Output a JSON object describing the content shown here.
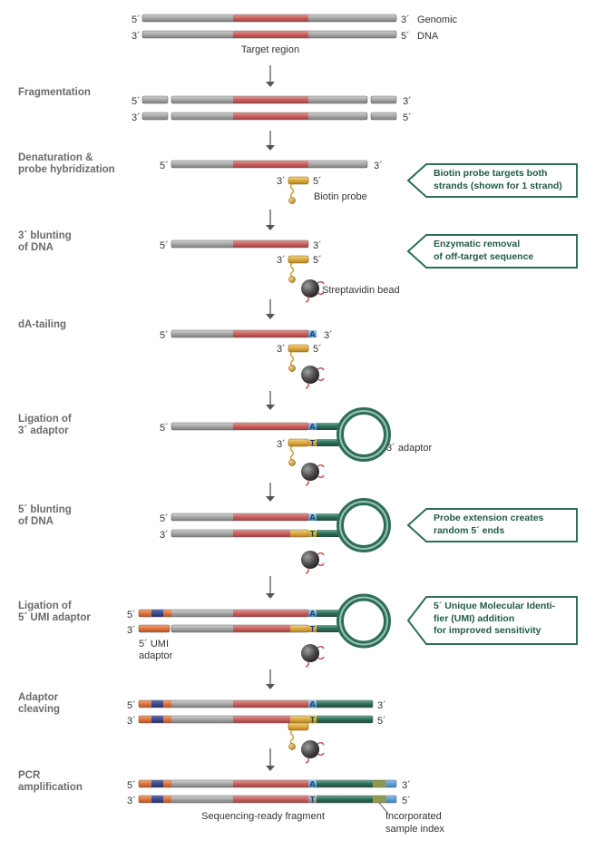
{
  "steps": [
    {
      "label": "Fragmentation"
    },
    {
      "label": "Denaturation &\nprobe hybridization"
    },
    {
      "label": "3´ blunting\nof DNA"
    },
    {
      "label": "dA-tailing"
    },
    {
      "label": "Ligation of\n3´ adaptor"
    },
    {
      "label": "5´ blunting\nof DNA"
    },
    {
      "label": "Ligation of\n5´ UMI adaptor"
    },
    {
      "label": "Adaptor\ncleaving"
    },
    {
      "label": "PCR\namplification"
    }
  ],
  "callouts": [
    {
      "text": "Biotin probe targets both\nstrands (shown for 1 strand)"
    },
    {
      "text": "Enzymatic removal\nof off-target sequence"
    },
    {
      "text": "Probe extension creates\nrandom 5´ ends"
    },
    {
      "text": "5´ Unique Molecular Identi-\nfier (UMI) addition\nfor improved sensitivity"
    }
  ],
  "labels": {
    "five_prime": "5´",
    "three_prime": "3´",
    "genomic": "Genomic",
    "dna": "DNA",
    "target_region": "Target region",
    "biotin_probe": "Biotin probe",
    "streptavidin_bead": "Streptavidin bead",
    "three_adaptor": "3´ adaptor",
    "five_umi": "5´ UMI",
    "adaptor": "adaptor",
    "seq_ready": "Sequencing-ready fragment",
    "incorporated": "Incorporated",
    "sample_index": "sample index",
    "base_a": "A",
    "base_t": "T"
  },
  "colors": {
    "dna_gray": "#9c9c9c",
    "target_red": "#c0504d",
    "probe_yellow": "#d8a53a",
    "adaptor_green": "#2e6d58",
    "umi_orange": "#e0743a",
    "umi_blue": "#2d3e8c",
    "index_blue": "#4a90c8",
    "bead_gray": "#4a4a4a",
    "callout_green": "#2e6d58"
  }
}
